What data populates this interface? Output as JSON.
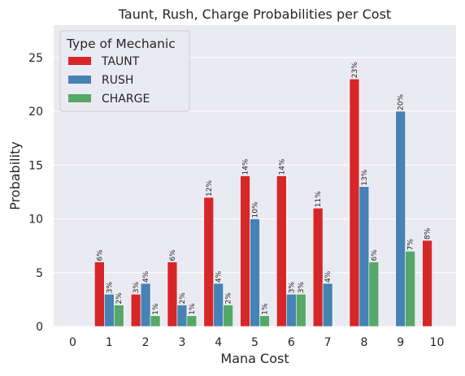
{
  "chart_data": {
    "type": "bar",
    "title": "Taunt, Rush, Charge Probabilities per Cost",
    "xlabel": "Mana Cost",
    "ylabel": "Probability",
    "categories": [
      "0",
      "1",
      "2",
      "3",
      "4",
      "5",
      "6",
      "7",
      "8",
      "9",
      "10"
    ],
    "ylim": [
      0,
      28
    ],
    "yticks": [
      0,
      5,
      10,
      15,
      20,
      25
    ],
    "grid": true,
    "legend": {
      "title": "Type of Mechanic",
      "placement": "top-left"
    },
    "series": [
      {
        "name": "TAUNT",
        "color": "#d62728",
        "values": [
          0,
          6,
          3,
          6,
          12,
          14,
          14,
          11,
          23,
          0,
          8
        ],
        "labels": [
          "",
          "6%",
          "3%",
          "6%",
          "12%",
          "14%",
          "14%",
          "11%",
          "23%",
          "",
          "8%"
        ]
      },
      {
        "name": "RUSH",
        "color": "#4682b4",
        "values": [
          0,
          3,
          4,
          2,
          4,
          10,
          3,
          4,
          13,
          20,
          0
        ],
        "labels": [
          "",
          "3%",
          "4%",
          "2%",
          "4%",
          "10%",
          "3%",
          "4%",
          "13%",
          "20%",
          ""
        ]
      },
      {
        "name": "CHARGE",
        "color": "#55a868",
        "values": [
          0,
          2,
          1,
          1,
          2,
          1,
          3,
          0,
          6,
          7,
          0
        ],
        "labels": [
          "",
          "2%",
          "1%",
          "1%",
          "2%",
          "1%",
          "3%",
          "",
          "6%",
          "7%",
          ""
        ]
      }
    ]
  }
}
